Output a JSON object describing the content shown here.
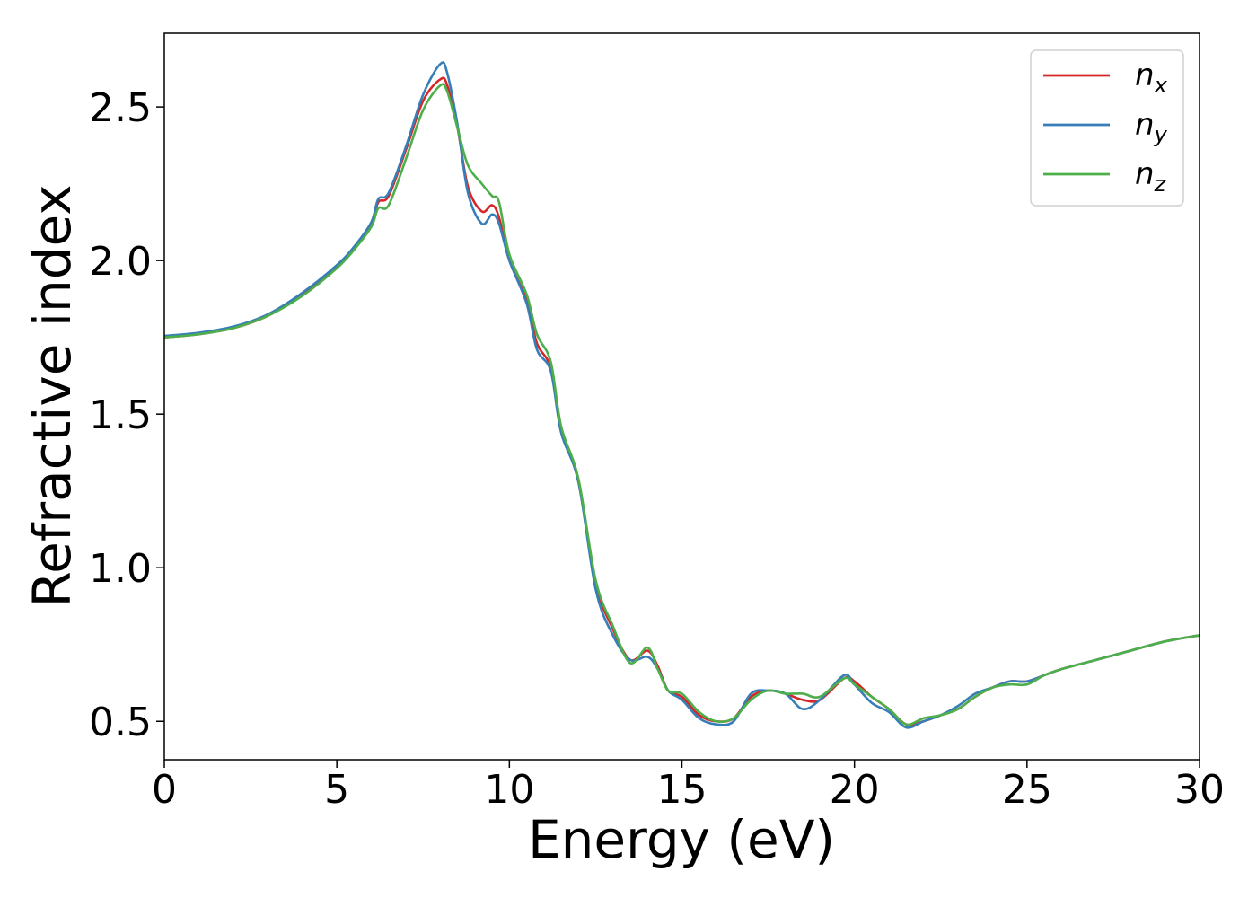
{
  "chart_data": {
    "type": "line",
    "xlabel": "Energy (eV)",
    "ylabel": "Refractive index",
    "xlim": [
      0,
      30
    ],
    "ylim": [
      0.375,
      2.74
    ],
    "xticks": [
      0,
      5,
      10,
      15,
      20,
      25,
      30
    ],
    "yticks": [
      0.5,
      1.0,
      1.5,
      2.0,
      2.5
    ],
    "xtick_labels": [
      "0",
      "5",
      "10",
      "15",
      "20",
      "25",
      "30"
    ],
    "ytick_labels": [
      "0.5",
      "1.0",
      "1.5",
      "2.0",
      "2.5"
    ],
    "grid": false,
    "legend_position": "top-right",
    "series": [
      {
        "name": "n",
        "subscript": "x",
        "color": "#d62728",
        "points": [
          [
            0,
            1.75
          ],
          [
            1,
            1.76
          ],
          [
            2,
            1.78
          ],
          [
            3,
            1.82
          ],
          [
            4,
            1.89
          ],
          [
            5,
            1.98
          ],
          [
            5.5,
            2.04
          ],
          [
            6,
            2.12
          ],
          [
            6.2,
            2.19
          ],
          [
            6.5,
            2.21
          ],
          [
            7,
            2.36
          ],
          [
            7.5,
            2.52
          ],
          [
            8,
            2.59
          ],
          [
            8.2,
            2.57
          ],
          [
            8.5,
            2.43
          ],
          [
            8.8,
            2.24
          ],
          [
            9.2,
            2.16
          ],
          [
            9.5,
            2.18
          ],
          [
            9.7,
            2.14
          ],
          [
            10,
            2.0
          ],
          [
            10.5,
            1.87
          ],
          [
            10.8,
            1.73
          ],
          [
            11.2,
            1.65
          ],
          [
            11.5,
            1.45
          ],
          [
            12,
            1.28
          ],
          [
            12.5,
            0.95
          ],
          [
            13,
            0.8
          ],
          [
            13.5,
            0.7
          ],
          [
            14,
            0.73
          ],
          [
            14.3,
            0.68
          ],
          [
            14.6,
            0.6
          ],
          [
            15,
            0.58
          ],
          [
            15.5,
            0.52
          ],
          [
            16,
            0.5
          ],
          [
            16.5,
            0.51
          ],
          [
            17,
            0.58
          ],
          [
            17.5,
            0.6
          ],
          [
            18,
            0.59
          ],
          [
            18.5,
            0.57
          ],
          [
            19,
            0.57
          ],
          [
            19.7,
            0.64
          ],
          [
            20,
            0.63
          ],
          [
            20.5,
            0.58
          ],
          [
            21,
            0.54
          ],
          [
            21.5,
            0.49
          ],
          [
            22,
            0.5
          ],
          [
            22.5,
            0.52
          ],
          [
            23,
            0.54
          ],
          [
            23.5,
            0.58
          ],
          [
            24,
            0.61
          ],
          [
            24.5,
            0.63
          ],
          [
            25,
            0.63
          ],
          [
            25.5,
            0.65
          ],
          [
            26,
            0.67
          ],
          [
            27,
            0.7
          ],
          [
            28,
            0.73
          ],
          [
            29,
            0.76
          ],
          [
            30,
            0.78
          ]
        ]
      },
      {
        "name": "n",
        "subscript": "y",
        "color": "#377eb8",
        "points": [
          [
            0,
            1.755
          ],
          [
            1,
            1.765
          ],
          [
            2,
            1.785
          ],
          [
            3,
            1.825
          ],
          [
            4,
            1.895
          ],
          [
            5,
            1.985
          ],
          [
            5.5,
            2.045
          ],
          [
            6,
            2.125
          ],
          [
            6.2,
            2.2
          ],
          [
            6.5,
            2.22
          ],
          [
            7,
            2.37
          ],
          [
            7.5,
            2.54
          ],
          [
            8,
            2.64
          ],
          [
            8.2,
            2.61
          ],
          [
            8.5,
            2.44
          ],
          [
            8.8,
            2.22
          ],
          [
            9.2,
            2.12
          ],
          [
            9.5,
            2.15
          ],
          [
            9.7,
            2.12
          ],
          [
            10,
            2.0
          ],
          [
            10.5,
            1.86
          ],
          [
            10.8,
            1.71
          ],
          [
            11.2,
            1.64
          ],
          [
            11.5,
            1.44
          ],
          [
            12,
            1.28
          ],
          [
            12.5,
            0.93
          ],
          [
            13,
            0.78
          ],
          [
            13.5,
            0.7
          ],
          [
            14,
            0.71
          ],
          [
            14.3,
            0.67
          ],
          [
            14.6,
            0.6
          ],
          [
            15,
            0.57
          ],
          [
            15.5,
            0.51
          ],
          [
            16,
            0.49
          ],
          [
            16.5,
            0.5
          ],
          [
            17,
            0.59
          ],
          [
            17.5,
            0.6
          ],
          [
            18,
            0.59
          ],
          [
            18.5,
            0.54
          ],
          [
            19,
            0.57
          ],
          [
            19.7,
            0.65
          ],
          [
            20,
            0.62
          ],
          [
            20.5,
            0.56
          ],
          [
            21,
            0.53
          ],
          [
            21.5,
            0.48
          ],
          [
            22,
            0.5
          ],
          [
            22.5,
            0.52
          ],
          [
            23,
            0.55
          ],
          [
            23.5,
            0.59
          ],
          [
            24,
            0.61
          ],
          [
            24.5,
            0.63
          ],
          [
            25,
            0.63
          ],
          [
            25.5,
            0.65
          ],
          [
            26,
            0.67
          ],
          [
            27,
            0.7
          ],
          [
            28,
            0.73
          ],
          [
            29,
            0.76
          ],
          [
            30,
            0.78
          ]
        ]
      },
      {
        "name": "n",
        "subscript": "z",
        "color": "#4daf4a",
        "points": [
          [
            0,
            1.75
          ],
          [
            1,
            1.76
          ],
          [
            2,
            1.78
          ],
          [
            3,
            1.82
          ],
          [
            4,
            1.885
          ],
          [
            5,
            1.975
          ],
          [
            5.5,
            2.035
          ],
          [
            6,
            2.11
          ],
          [
            6.2,
            2.17
          ],
          [
            6.5,
            2.18
          ],
          [
            7,
            2.33
          ],
          [
            7.5,
            2.49
          ],
          [
            8,
            2.57
          ],
          [
            8.2,
            2.55
          ],
          [
            8.5,
            2.43
          ],
          [
            8.8,
            2.31
          ],
          [
            9.2,
            2.25
          ],
          [
            9.5,
            2.21
          ],
          [
            9.7,
            2.19
          ],
          [
            10,
            2.02
          ],
          [
            10.5,
            1.89
          ],
          [
            10.8,
            1.76
          ],
          [
            11.2,
            1.67
          ],
          [
            11.5,
            1.46
          ],
          [
            12,
            1.29
          ],
          [
            12.5,
            0.96
          ],
          [
            13,
            0.81
          ],
          [
            13.5,
            0.69
          ],
          [
            14,
            0.74
          ],
          [
            14.3,
            0.67
          ],
          [
            14.6,
            0.6
          ],
          [
            15,
            0.59
          ],
          [
            15.5,
            0.53
          ],
          [
            16,
            0.5
          ],
          [
            16.5,
            0.51
          ],
          [
            17,
            0.57
          ],
          [
            17.5,
            0.6
          ],
          [
            18,
            0.59
          ],
          [
            18.5,
            0.59
          ],
          [
            19,
            0.58
          ],
          [
            19.7,
            0.64
          ],
          [
            20,
            0.62
          ],
          [
            20.5,
            0.58
          ],
          [
            21,
            0.54
          ],
          [
            21.5,
            0.49
          ],
          [
            22,
            0.51
          ],
          [
            22.5,
            0.52
          ],
          [
            23,
            0.54
          ],
          [
            23.5,
            0.58
          ],
          [
            24,
            0.61
          ],
          [
            24.5,
            0.62
          ],
          [
            25,
            0.62
          ],
          [
            25.5,
            0.65
          ],
          [
            26,
            0.67
          ],
          [
            27,
            0.7
          ],
          [
            28,
            0.73
          ],
          [
            29,
            0.76
          ],
          [
            30,
            0.78
          ]
        ]
      }
    ]
  }
}
